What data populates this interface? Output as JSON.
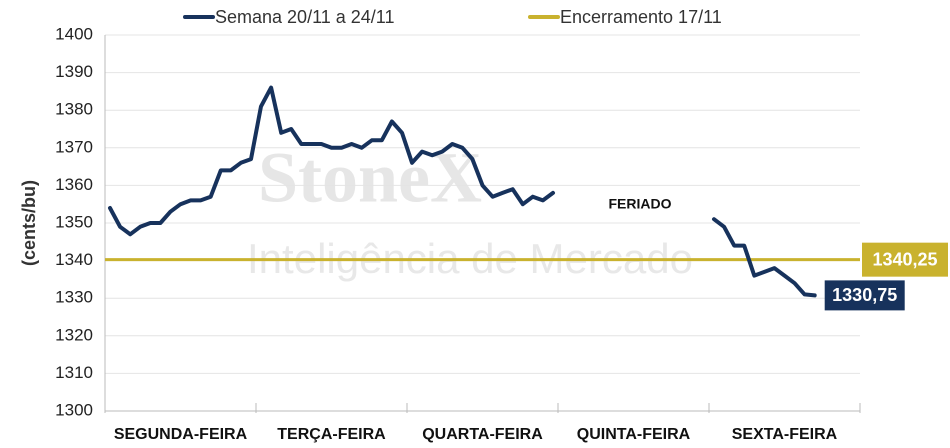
{
  "chart_data": {
    "type": "line",
    "ylabel": "(cents/bu)",
    "annotation": "FERIADO",
    "watermark": [
      "StoneX",
      "Inteligência de Mercado"
    ],
    "categories": [
      null,
      null,
      null,
      null,
      null,
      null,
      null,
      "SEGUNDA-FEIRA",
      null,
      null,
      null,
      null,
      null,
      null,
      null,
      null,
      null,
      null,
      null,
      null,
      null,
      null,
      "TERÇA-FEIRA",
      null,
      null,
      null,
      null,
      null,
      null,
      null,
      null,
      null,
      null,
      null,
      null,
      null,
      null,
      "QUARTA-FEIRA",
      null,
      null,
      null,
      null,
      null,
      null,
      null,
      null,
      null,
      null,
      null,
      null,
      null,
      null,
      "QUINTA-FEIRA",
      null,
      null,
      null,
      null,
      null,
      null,
      null,
      null,
      null,
      null,
      null,
      null,
      null,
      null,
      "SEXTA-FEIRA",
      null,
      null,
      null,
      null,
      null,
      null,
      null
    ],
    "series": [
      {
        "name": "Semana 20/11 a 24/11",
        "color": "#17325c",
        "values": [
          1354,
          1349,
          1347,
          1349,
          1350,
          1350,
          1353,
          1355,
          1356,
          1356,
          1357,
          1364,
          1364,
          1366,
          1367,
          1381,
          1386,
          1374,
          1375,
          1371,
          1371,
          1371,
          1370,
          1370,
          1371,
          1370,
          1372,
          1372,
          1377,
          1374,
          1366,
          1369,
          1368,
          1369,
          1371,
          1370,
          1367,
          1360,
          1357,
          1358,
          1359,
          1355,
          1357,
          1356,
          1358,
          null,
          null,
          null,
          null,
          null,
          null,
          null,
          null,
          null,
          null,
          null,
          null,
          null,
          null,
          null,
          1351,
          1349,
          1344,
          1344,
          1336,
          1337,
          1338,
          1336,
          1334,
          1331,
          1330.75,
          null,
          null,
          null,
          null
        ],
        "end_label": "1330,75"
      }
    ],
    "reference_line": {
      "name": "Encerramento 17/11",
      "color": "#c9b22e",
      "value": 1340.25,
      "value_label": "1340,25"
    },
    "ylim": [
      1300,
      1400
    ],
    "yticks": [
      1300,
      1310,
      1320,
      1330,
      1340,
      1350,
      1360,
      1370,
      1380,
      1390,
      1400
    ],
    "grid": true
  }
}
